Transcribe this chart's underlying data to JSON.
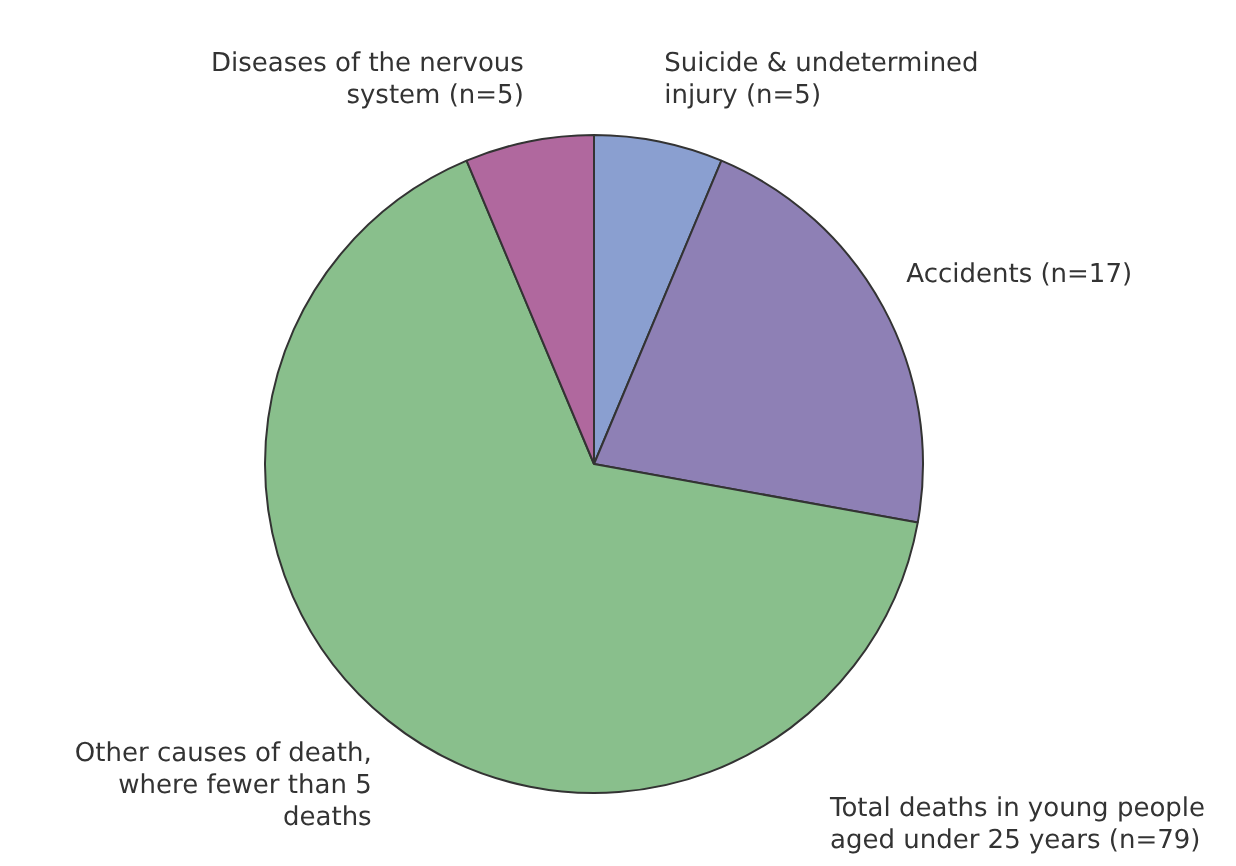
{
  "chart_data": {
    "type": "pie",
    "categories": [
      "Suicide & undetermined injury (n=5)",
      "Accidents (n=17)",
      "Other causes of death, where fewer than 5 deaths",
      "Diseases of the nervous system (n=5)"
    ],
    "values": [
      5,
      17,
      52,
      5
    ],
    "colors": [
      "#8a9fd0",
      "#8e80b5",
      "#89bf8c",
      "#b0689e"
    ],
    "annotations": [
      "Total deaths in young people aged under 25 years (n=79)"
    ],
    "legend": false
  }
}
